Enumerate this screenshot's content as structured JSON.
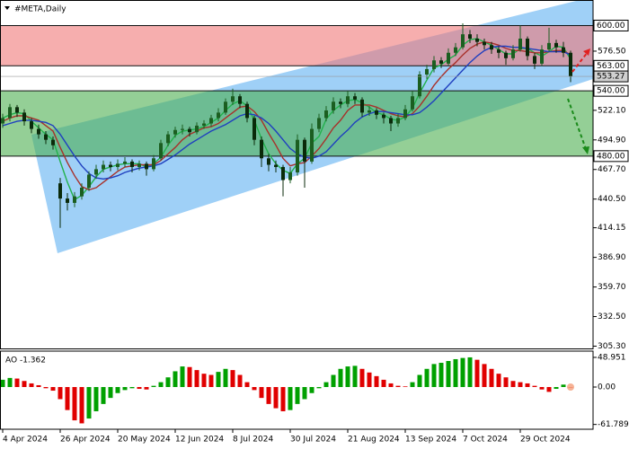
{
  "chart_data": [
    {
      "type": "candlestick",
      "title": "#META,Daily",
      "categories": [
        "4 Apr 2024",
        null,
        null,
        null,
        null,
        null,
        null,
        null,
        "26 Apr 2024",
        null,
        null,
        null,
        null,
        null,
        null,
        null,
        "20 May 2024",
        null,
        null,
        null,
        null,
        null,
        null,
        null,
        "12 Jun 2024",
        null,
        null,
        null,
        null,
        null,
        null,
        null,
        "8 Jul 2024",
        null,
        null,
        null,
        null,
        null,
        null,
        null,
        "30 Jul 2024",
        null,
        null,
        null,
        null,
        null,
        null,
        null,
        "21 Aug 2024",
        null,
        null,
        null,
        null,
        null,
        null,
        null,
        "13 Sep 2024",
        null,
        null,
        null,
        null,
        null,
        null,
        null,
        "7 Oct 2024",
        null,
        null,
        null,
        null,
        null,
        null,
        null,
        "29 Oct 2024",
        null,
        null,
        null,
        null,
        null,
        null,
        null
      ],
      "ohlc": [
        [
          510,
          519,
          506,
          515
        ],
        [
          515,
          528,
          512,
          525
        ],
        [
          525,
          527,
          516,
          520
        ],
        [
          520,
          523,
          508,
          512
        ],
        [
          512,
          515,
          501,
          505
        ],
        [
          505,
          509,
          496,
          500
        ],
        [
          500,
          503,
          491,
          495
        ],
        [
          495,
          498,
          486,
          490
        ],
        [
          455,
          460,
          414,
          441
        ],
        [
          441,
          446,
          430,
          437
        ],
        [
          437,
          447,
          433,
          443
        ],
        [
          443,
          455,
          440,
          451
        ],
        [
          451,
          466,
          448,
          463
        ],
        [
          463,
          472,
          459,
          468
        ],
        [
          468,
          476,
          465,
          472
        ],
        [
          472,
          475,
          466,
          470
        ],
        [
          470,
          477,
          467,
          473
        ],
        [
          473,
          479,
          470,
          475
        ],
        [
          475,
          477,
          465,
          470
        ],
        [
          470,
          476,
          467,
          473
        ],
        [
          473,
          475,
          462,
          468
        ],
        [
          468,
          481,
          466,
          478
        ],
        [
          478,
          495,
          476,
          492
        ],
        [
          492,
          503,
          489,
          500
        ],
        [
          500,
          507,
          497,
          504
        ],
        [
          504,
          509,
          500,
          505
        ],
        [
          505,
          507,
          498,
          502
        ],
        [
          502,
          511,
          500,
          508
        ],
        [
          508,
          513,
          505,
          510
        ],
        [
          510,
          518,
          507,
          515
        ],
        [
          515,
          524,
          512,
          520
        ],
        [
          520,
          533,
          518,
          530
        ],
        [
          530,
          542,
          527,
          535
        ],
        [
          535,
          537,
          524,
          528
        ],
        [
          528,
          530,
          511,
          515
        ],
        [
          515,
          517,
          490,
          495
        ],
        [
          495,
          498,
          470,
          478
        ],
        [
          478,
          482,
          466,
          472
        ],
        [
          472,
          476,
          465,
          470
        ],
        [
          470,
          472,
          443,
          458
        ],
        [
          458,
          470,
          455,
          465
        ],
        [
          465,
          500,
          462,
          495
        ],
        [
          495,
          497,
          451,
          475
        ],
        [
          475,
          510,
          473,
          505
        ],
        [
          505,
          519,
          502,
          515
        ],
        [
          515,
          526,
          512,
          522
        ],
        [
          522,
          534,
          519,
          530
        ],
        [
          530,
          533,
          524,
          528
        ],
        [
          528,
          540,
          525,
          535
        ],
        [
          535,
          538,
          528,
          532
        ],
        [
          532,
          534,
          516,
          520
        ],
        [
          520,
          526,
          517,
          522
        ],
        [
          522,
          524,
          514,
          518
        ],
        [
          518,
          520,
          510,
          515
        ],
        [
          515,
          517,
          503,
          510
        ],
        [
          510,
          519,
          507,
          515
        ],
        [
          515,
          527,
          513,
          523
        ],
        [
          523,
          540,
          521,
          535
        ],
        [
          535,
          558,
          533,
          555
        ],
        [
          555,
          564,
          551,
          560
        ],
        [
          560,
          572,
          557,
          568
        ],
        [
          568,
          571,
          561,
          565
        ],
        [
          565,
          579,
          563,
          575
        ],
        [
          575,
          584,
          572,
          580
        ],
        [
          580,
          602,
          578,
          592
        ],
        [
          592,
          596,
          584,
          588
        ],
        [
          588,
          592,
          581,
          585
        ],
        [
          585,
          588,
          578,
          582
        ],
        [
          582,
          585,
          574,
          578
        ],
        [
          578,
          581,
          570,
          575
        ],
        [
          575,
          577,
          564,
          570
        ],
        [
          570,
          582,
          568,
          578
        ],
        [
          578,
          600,
          576,
          588
        ],
        [
          588,
          590,
          568,
          572
        ],
        [
          572,
          575,
          560,
          565
        ],
        [
          565,
          582,
          563,
          578
        ],
        [
          578,
          598,
          576,
          584
        ],
        [
          584,
          587,
          575,
          580
        ],
        [
          580,
          585,
          571,
          575
        ],
        [
          575,
          577,
          548,
          553.27
        ]
      ],
      "bull_color": "#1b5e20",
      "bear_color": "#0a2a0a",
      "series": [
        {
          "color": "#22b14c",
          "values": [
            515,
            518,
            520,
            519,
            512,
            506,
            500,
            495,
            475,
            456,
            440,
            444,
            452,
            461,
            468,
            470,
            472,
            473,
            473,
            473,
            470,
            473,
            479,
            490,
            499,
            503,
            504,
            505,
            507,
            511,
            515,
            522,
            528,
            531,
            526,
            513,
            496,
            482,
            473,
            467,
            464,
            473,
            478,
            492,
            498,
            514,
            522,
            527,
            531,
            532,
            529,
            525,
            520,
            518,
            514,
            513,
            516,
            524,
            538,
            550,
            561,
            564,
            569,
            573,
            582,
            587,
            588,
            585,
            582,
            578,
            574,
            574,
            579,
            579,
            575,
            572,
            576,
            581,
            580,
            569
          ]
        },
        {
          "color": "#a8302a",
          "values": [
            512,
            515,
            517,
            517,
            515,
            513,
            508,
            503,
            488,
            474,
            462,
            452,
            449,
            451,
            456,
            461,
            466,
            470,
            471,
            472,
            472,
            472,
            476,
            482,
            488,
            495,
            500,
            503,
            506,
            507,
            510,
            515,
            520,
            525,
            526,
            521,
            513,
            501,
            490,
            478,
            471,
            473,
            474,
            480,
            487,
            496,
            506,
            513,
            522,
            527,
            527,
            527,
            525,
            522,
            519,
            517,
            516,
            519,
            526,
            535,
            545,
            553,
            560,
            566,
            573,
            579,
            583,
            585,
            584,
            582,
            579,
            577,
            577,
            576,
            575,
            575,
            576,
            577,
            577,
            573
          ]
        },
        {
          "color": "#1f3fbf",
          "values": [
            508,
            510,
            512,
            513,
            513,
            512,
            511,
            508,
            500,
            490,
            480,
            471,
            464,
            460,
            459,
            460,
            462,
            465,
            467,
            469,
            470,
            471,
            473,
            477,
            481,
            486,
            491,
            495,
            499,
            503,
            506,
            509,
            513,
            517,
            519,
            518,
            515,
            510,
            503,
            495,
            487,
            482,
            479,
            478,
            480,
            484,
            491,
            498,
            504,
            511,
            516,
            519,
            521,
            521,
            520,
            519,
            518,
            518,
            520,
            525,
            531,
            538,
            545,
            552,
            559,
            566,
            572,
            577,
            580,
            581,
            581,
            580,
            580,
            579,
            578,
            577,
            576,
            576,
            576,
            573
          ]
        }
      ],
      "ylim": [
        302.8,
        623.1
      ],
      "yticks": [
        {
          "value": 576.5,
          "label": "576.50"
        },
        {
          "value": 522.1,
          "label": "522.10"
        },
        {
          "value": 494.9,
          "label": "494.90"
        },
        {
          "value": 467.7,
          "label": "467.70"
        },
        {
          "value": 440.5,
          "label": "440.50"
        },
        {
          "value": 414.15,
          "label": "414.15"
        },
        {
          "value": 386.9,
          "label": "386.90"
        },
        {
          "value": 359.7,
          "label": "359.70"
        },
        {
          "value": 332.5,
          "label": "332.50"
        },
        {
          "value": 305.3,
          "label": "305.30"
        }
      ],
      "zones": [
        {
          "from": 563,
          "to": 600,
          "color": "#f07878"
        },
        {
          "from": 480,
          "to": 540,
          "color": "#4caf50"
        }
      ],
      "levels": [
        {
          "value": 600,
          "label": "600.00"
        },
        {
          "value": 563,
          "label": "563.00"
        },
        {
          "value": 540,
          "label": "540.00"
        },
        {
          "value": 480,
          "label": "480.00"
        }
      ],
      "current": {
        "value": 553.27,
        "label": "553.27"
      }
    },
    {
      "type": "bar",
      "title": "AO -1.362",
      "values": [
        12,
        15,
        14,
        10,
        6,
        3,
        -2,
        -6,
        -20,
        -38,
        -55,
        -60,
        -52,
        -40,
        -28,
        -18,
        -10,
        -5,
        -2,
        -3,
        -4,
        2,
        8,
        16,
        26,
        34,
        33,
        28,
        22,
        20,
        25,
        30,
        28,
        20,
        8,
        -5,
        -18,
        -28,
        -35,
        -40,
        -38,
        -28,
        -20,
        -10,
        -2,
        8,
        20,
        30,
        34,
        35,
        30,
        24,
        18,
        12,
        6,
        2,
        1,
        8,
        20,
        30,
        38,
        40,
        43,
        46,
        48,
        49,
        45,
        38,
        30,
        22,
        16,
        10,
        8,
        6,
        2,
        -4,
        -8,
        -3,
        4,
        -1.362
      ],
      "up_color": "#00a000",
      "down_color": "#e00000",
      "ylim": [
        -69.7,
        59.3
      ],
      "yticks": [
        48.951,
        {
          "value": 0,
          "label": "0.00"
        },
        -61.789
      ]
    }
  ]
}
